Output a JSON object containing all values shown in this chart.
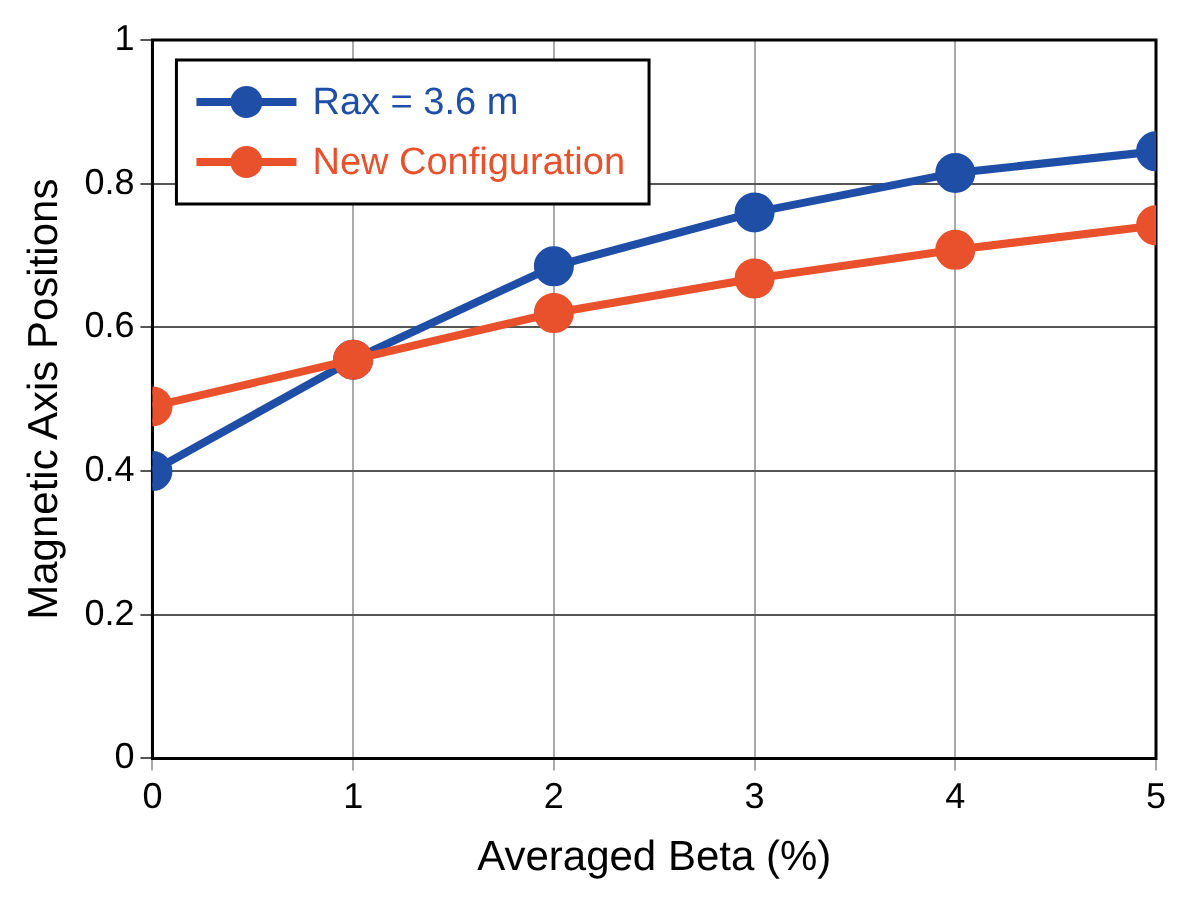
{
  "chart_data": {
    "type": "line",
    "xlabel": "Averaged Beta (%)",
    "ylabel": "Magnetic Axis Positions",
    "x": [
      0,
      1,
      2,
      3,
      4,
      5
    ],
    "series": [
      {
        "name": "Rax = 3.6 m",
        "color": "#1f4ea6",
        "values": [
          0.4,
          0.555,
          0.685,
          0.76,
          0.815,
          0.845
        ]
      },
      {
        "name": "New Configuration",
        "color": "#e8512b",
        "values": [
          0.49,
          0.555,
          0.62,
          0.668,
          0.708,
          0.742
        ]
      }
    ],
    "xlim": [
      0,
      5
    ],
    "xticks": [
      0,
      1,
      2,
      3,
      4,
      5
    ],
    "ylim": [
      0,
      1
    ],
    "yticks": [
      0,
      0.2,
      0.4,
      0.6,
      0.8,
      1
    ],
    "grid": true,
    "legend": "top left",
    "marker": "circle",
    "line_style": "solid"
  }
}
